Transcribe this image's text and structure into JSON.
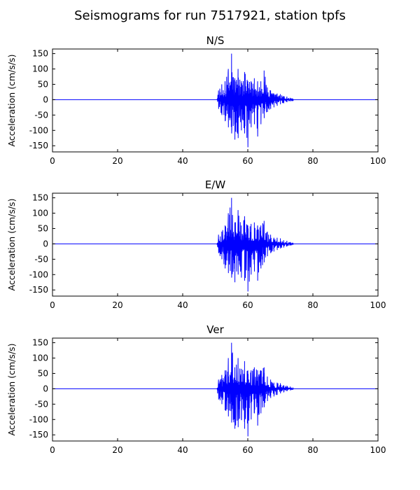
{
  "figure": {
    "title": "Seismograms for run 7517921, station tpfs"
  },
  "chart_data": [
    {
      "type": "line",
      "title": "N/S",
      "xlabel": "",
      "ylabel": "Acceleration (cm/s/s)",
      "xlim": [
        0,
        100
      ],
      "ylim": [
        -170,
        165
      ],
      "xticks": [
        0,
        20,
        40,
        60,
        80,
        100
      ],
      "yticks": [
        -150,
        -100,
        -50,
        0,
        50,
        100,
        150
      ],
      "grid": false,
      "line_color": "#0000ff",
      "series": [
        {
          "x": [
            0,
            50.5,
            51,
            52,
            53,
            54,
            55,
            56,
            57,
            58,
            59,
            60,
            61,
            62,
            63,
            64,
            65,
            66,
            67,
            68,
            69,
            70,
            71,
            72,
            73,
            74,
            100
          ],
          "y_max": [
            0,
            0,
            30,
            50,
            60,
            100,
            150,
            70,
            100,
            60,
            90,
            60,
            60,
            70,
            60,
            60,
            95,
            40,
            30,
            20,
            20,
            18,
            12,
            10,
            6,
            2,
            0
          ],
          "y_min": [
            0,
            0,
            -30,
            -50,
            -70,
            -90,
            -110,
            -130,
            -125,
            -100,
            -110,
            -155,
            -90,
            -80,
            -120,
            -80,
            -60,
            -40,
            -30,
            -25,
            -20,
            -15,
            -12,
            -8,
            -5,
            -2,
            0
          ]
        }
      ]
    },
    {
      "type": "line",
      "title": "E/W",
      "xlabel": "",
      "ylabel": "Acceleration (cm/s/s)",
      "xlim": [
        0,
        100
      ],
      "ylim": [
        -170,
        165
      ],
      "xticks": [
        0,
        20,
        40,
        60,
        80,
        100
      ],
      "yticks": [
        -150,
        -100,
        -50,
        0,
        50,
        100,
        150
      ],
      "grid": false,
      "line_color": "#0000ff",
      "series": [
        {
          "x": [
            0,
            50.5,
            51,
            52,
            53,
            54,
            55,
            56,
            57,
            58,
            59,
            60,
            61,
            62,
            63,
            64,
            65,
            66,
            67,
            68,
            69,
            70,
            71,
            72,
            73,
            74,
            100
          ],
          "y_max": [
            0,
            0,
            30,
            40,
            60,
            100,
            150,
            70,
            110,
            60,
            90,
            60,
            65,
            70,
            60,
            60,
            75,
            40,
            30,
            20,
            20,
            18,
            12,
            10,
            6,
            2,
            0
          ],
          "y_min": [
            0,
            0,
            -30,
            -50,
            -80,
            -95,
            -110,
            -125,
            -100,
            -110,
            -120,
            -155,
            -100,
            -90,
            -120,
            -80,
            -60,
            -40,
            -30,
            -25,
            -20,
            -15,
            -12,
            -8,
            -5,
            -2,
            0
          ]
        }
      ]
    },
    {
      "type": "line",
      "title": "Ver",
      "xlabel": "",
      "ylabel": "Acceleration (cm/s/s)",
      "xlim": [
        0,
        100
      ],
      "ylim": [
        -170,
        165
      ],
      "xticks": [
        0,
        20,
        40,
        60,
        80,
        100
      ],
      "yticks": [
        -150,
        -100,
        -50,
        0,
        50,
        100,
        150
      ],
      "grid": false,
      "line_color": "#0000ff",
      "series": [
        {
          "x": [
            0,
            50.5,
            51,
            52,
            53,
            54,
            55,
            56,
            57,
            58,
            59,
            60,
            61,
            62,
            63,
            64,
            65,
            66,
            67,
            68,
            69,
            70,
            71,
            72,
            73,
            74,
            100
          ],
          "y_max": [
            0,
            0,
            30,
            45,
            60,
            100,
            150,
            70,
            100,
            65,
            90,
            60,
            60,
            70,
            60,
            60,
            70,
            40,
            30,
            20,
            20,
            18,
            12,
            10,
            6,
            2,
            0
          ],
          "y_min": [
            0,
            0,
            -35,
            -50,
            -70,
            -90,
            -110,
            -130,
            -125,
            -100,
            -130,
            -155,
            -100,
            -80,
            -120,
            -80,
            -60,
            -40,
            -30,
            -25,
            -20,
            -15,
            -12,
            -8,
            -5,
            -2,
            0
          ]
        }
      ]
    }
  ]
}
